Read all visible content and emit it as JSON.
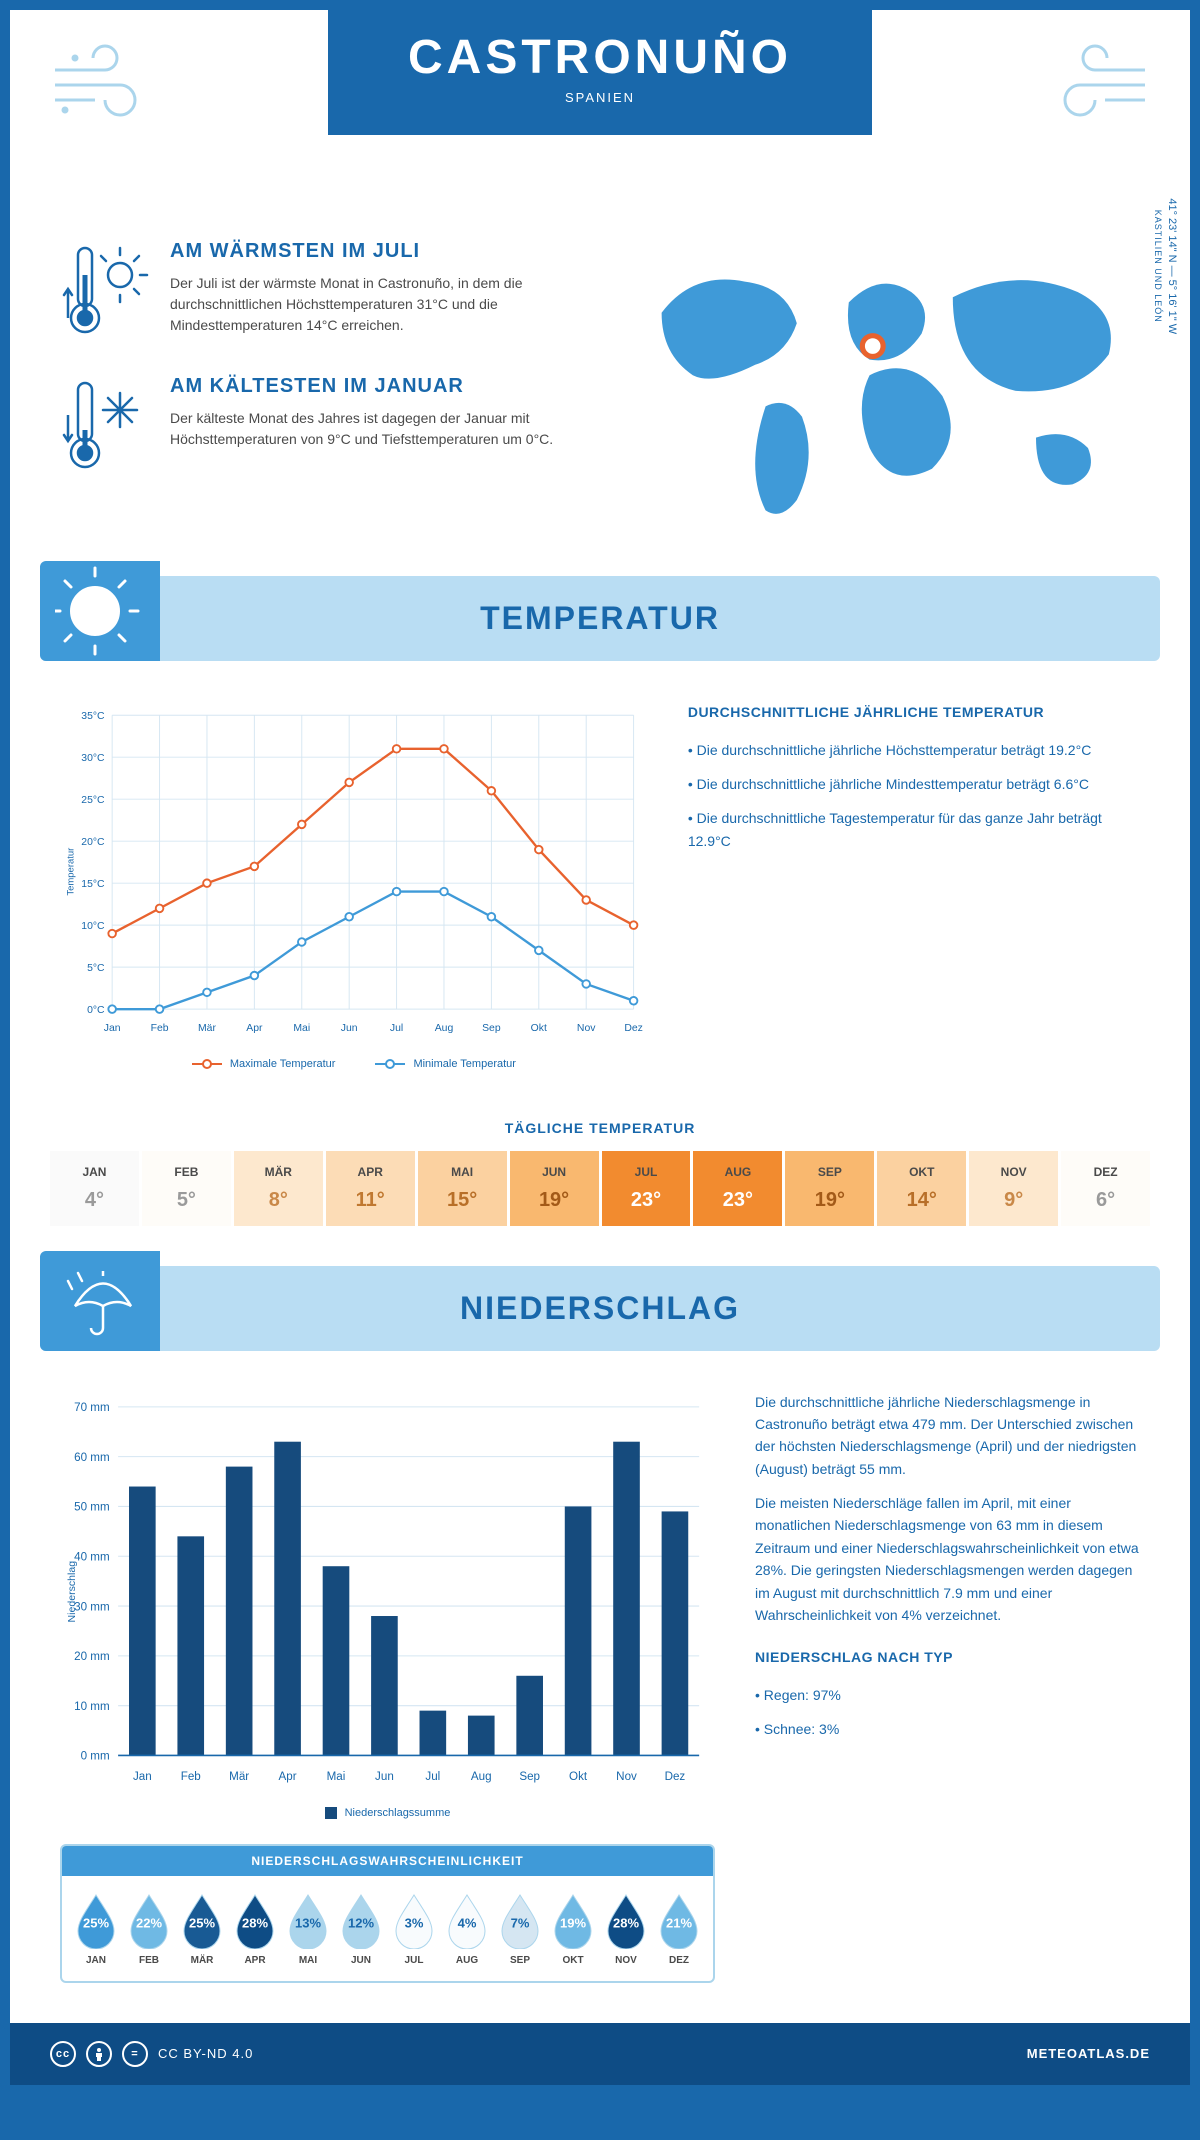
{
  "colors": {
    "primary": "#1968ab",
    "light": "#b9ddf3",
    "mid": "#3f9ad8",
    "pale": "#abd5ec",
    "grid": "#d5e6f2",
    "orange": "#e8622e",
    "blue": "#3f9ad8",
    "darkbar": "#164b7d"
  },
  "header": {
    "title": "CASTRONUÑO",
    "subtitle": "SPANIEN"
  },
  "coords": {
    "lat": "41° 23' 14\" N — 5° 16' 1\" W",
    "region": "KASTILIEN UND LEÓN"
  },
  "facts": {
    "warm": {
      "title": "AM WÄRMSTEN IM JULI",
      "text": "Der Juli ist der wärmste Monat in Castronuño, in dem die durchschnittlichen Höchsttemperaturen 31°C und die Mindesttemperaturen 14°C erreichen."
    },
    "cold": {
      "title": "AM KÄLTESTEN IM JANUAR",
      "text": "Der kälteste Monat des Jahres ist dagegen der Januar mit Höchsttemperaturen von 9°C und Tiefsttemperaturen um 0°C."
    }
  },
  "temperature": {
    "section_title": "TEMPERATUR",
    "months": [
      "Jan",
      "Feb",
      "Mär",
      "Apr",
      "Mai",
      "Jun",
      "Jul",
      "Aug",
      "Sep",
      "Okt",
      "Nov",
      "Dez"
    ],
    "max": [
      9,
      12,
      15,
      17,
      22,
      27,
      31,
      31,
      26,
      19,
      13,
      10
    ],
    "min": [
      0,
      0,
      2,
      4,
      8,
      11,
      14,
      14,
      11,
      7,
      3,
      1
    ],
    "ylim": [
      0,
      35
    ],
    "ytick": 5,
    "ylabel": "Temperatur",
    "legend_max": "Maximale Temperatur",
    "legend_min": "Minimale Temperatur",
    "side_title": "DURCHSCHNITTLICHE JÄHRLICHE TEMPERATUR",
    "side_bullets": [
      "• Die durchschnittliche jährliche Höchsttemperatur beträgt 19.2°C",
      "• Die durchschnittliche jährliche Mindesttemperatur beträgt 6.6°C",
      "• Die durchschnittliche Tagestemperatur für das ganze Jahr beträgt 12.9°C"
    ]
  },
  "daily": {
    "title": "TÄGLICHE TEMPERATUR",
    "months": [
      "JAN",
      "FEB",
      "MÄR",
      "APR",
      "MAI",
      "JUN",
      "JUL",
      "AUG",
      "SEP",
      "OKT",
      "NOV",
      "DEZ"
    ],
    "values": [
      "4°",
      "5°",
      "8°",
      "11°",
      "15°",
      "19°",
      "23°",
      "23°",
      "19°",
      "14°",
      "9°",
      "6°"
    ],
    "bg_colors": [
      "#fafafa",
      "#fefcf8",
      "#fde8ce",
      "#fcdcb6",
      "#fbd1a0",
      "#f9b86f",
      "#f28b2f",
      "#f28b2f",
      "#f9b86f",
      "#fbd1a0",
      "#fde8ce",
      "#fefcf8"
    ],
    "text_colors": [
      "#9a9a9a",
      "#9a9a9a",
      "#c98848",
      "#c07830",
      "#b86f28",
      "#a35a18",
      "#ffffff",
      "#ffffff",
      "#a35a18",
      "#b86f28",
      "#c98848",
      "#9a9a9a"
    ]
  },
  "precip": {
    "section_title": "NIEDERSCHLAG",
    "months": [
      "Jan",
      "Feb",
      "Mär",
      "Apr",
      "Mai",
      "Jun",
      "Jul",
      "Aug",
      "Sep",
      "Okt",
      "Nov",
      "Dez"
    ],
    "values": [
      54,
      44,
      58,
      63,
      38,
      28,
      9,
      8,
      16,
      50,
      63,
      49
    ],
    "ylim": [
      0,
      70
    ],
    "ytick": 10,
    "ylabel": "Niederschlag",
    "legend": "Niederschlagssumme",
    "text_p1": "Die durchschnittliche jährliche Niederschlagsmenge in Castronuño beträgt etwa 479 mm. Der Unterschied zwischen der höchsten Niederschlagsmenge (April) und der niedrigsten (August) beträgt 55 mm.",
    "text_p2": "Die meisten Niederschläge fallen im April, mit einer monatlichen Niederschlagsmenge von 63 mm in diesem Zeitraum und einer Niederschlagswahrscheinlichkeit von etwa 28%. Die geringsten Niederschlagsmengen werden dagegen im August mit durchschnittlich 7.9 mm und einer Wahrscheinlichkeit von 4% verzeichnet.",
    "type_title": "NIEDERSCHLAG NACH TYP",
    "type_bullets": [
      "• Regen: 97%",
      "• Schnee: 3%"
    ]
  },
  "prob": {
    "title": "NIEDERSCHLAGSWAHRSCHEINLICHKEIT",
    "months": [
      "JAN",
      "FEB",
      "MÄR",
      "APR",
      "MAI",
      "JUN",
      "JUL",
      "AUG",
      "SEP",
      "OKT",
      "NOV",
      "DEZ"
    ],
    "values": [
      "25%",
      "22%",
      "25%",
      "28%",
      "13%",
      "12%",
      "3%",
      "4%",
      "7%",
      "19%",
      "28%",
      "21%"
    ],
    "fills": [
      "#3f9ad8",
      "#6fb9e4",
      "#185a94",
      "#0e4c85",
      "#abd5ec",
      "#abd5ec",
      "#f8fbfd",
      "#f8fbfd",
      "#d5e6f2",
      "#6fb9e4",
      "#0e4c85",
      "#6fb9e4"
    ],
    "text_colors": [
      "#ffffff",
      "#ffffff",
      "#ffffff",
      "#ffffff",
      "#1968ab",
      "#1968ab",
      "#1968ab",
      "#1968ab",
      "#1968ab",
      "#ffffff",
      "#ffffff",
      "#ffffff"
    ]
  },
  "footer": {
    "license": "CC BY-ND 4.0",
    "site": "METEOATLAS.DE"
  }
}
